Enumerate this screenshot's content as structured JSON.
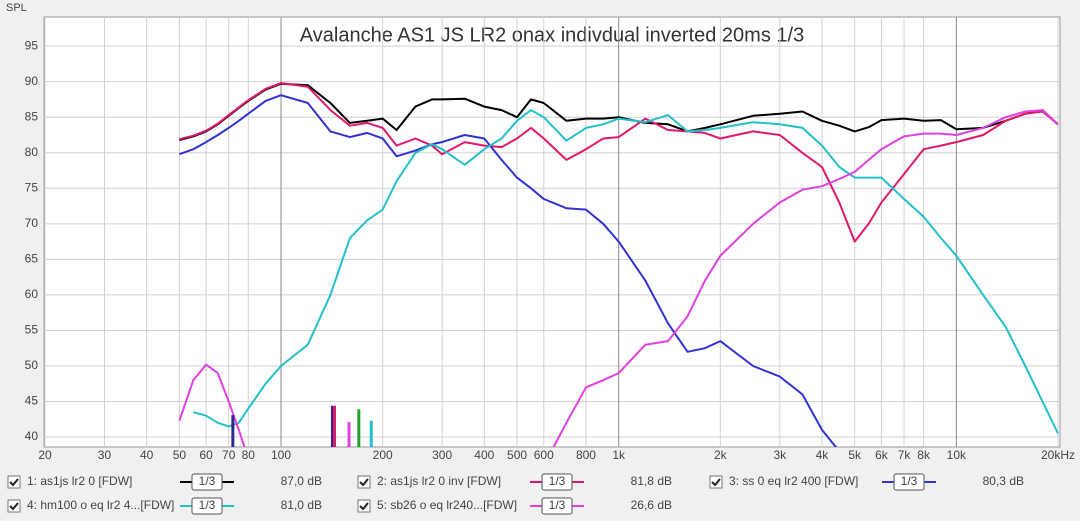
{
  "chart_data": {
    "type": "line",
    "log_x": true,
    "grid": true,
    "title": "Avalanche AS1 JS LR2 onax indivdual inverted 20ms 1/3",
    "ylabel": "SPL",
    "xlim": [
      20,
      20000
    ],
    "ylim": [
      38.6,
      99.1
    ],
    "xticks": [
      20,
      30,
      40,
      50,
      60,
      70,
      80,
      100,
      200,
      300,
      400,
      500,
      600,
      800,
      {
        "value": 1000,
        "label": "1k"
      },
      {
        "value": 2000,
        "label": "2k"
      },
      {
        "value": 3000,
        "label": "3k"
      },
      {
        "value": 4000,
        "label": "4k"
      },
      {
        "value": 5000,
        "label": "5k"
      },
      {
        "value": 6000,
        "label": "6k"
      },
      {
        "value": 7000,
        "label": "7k"
      },
      {
        "value": 8000,
        "label": "8k"
      },
      {
        "value": 10000,
        "label": "10k"
      },
      {
        "value": 20000,
        "label": "20kHz"
      }
    ],
    "yticks": [
      40,
      45,
      50,
      55,
      60,
      65,
      70,
      75,
      80,
      85,
      90,
      95
    ],
    "x": [
      50,
      55,
      60,
      65,
      70,
      75,
      80,
      90,
      100,
      120,
      140,
      160,
      180,
      200,
      220,
      250,
      280,
      300,
      350,
      400,
      450,
      500,
      550,
      600,
      700,
      800,
      900,
      1000,
      1200,
      1400,
      1600,
      1800,
      2000,
      2500,
      3000,
      3500,
      4000,
      4500,
      5000,
      5500,
      6000,
      7000,
      8000,
      9000,
      10000,
      12000,
      14000,
      16000,
      18000,
      20000
    ],
    "series": [
      {
        "name": "1: as1js lr2 0 [FDW]",
        "smoothing": "1/3",
        "readout": "87,0 dB",
        "color": "#000000",
        "values": [
          81.8,
          82.3,
          83,
          84,
          85.2,
          86.3,
          87.3,
          88.9,
          89.7,
          89.5,
          87,
          84.2,
          84.5,
          84.8,
          83.2,
          86.5,
          87.5,
          87.5,
          87.6,
          86.5,
          86,
          85,
          87.5,
          87,
          84.5,
          84.8,
          84.8,
          85,
          84.2,
          84,
          83,
          83.5,
          84,
          85.2,
          85.5,
          85.8,
          84.5,
          83.8,
          83,
          83.6,
          84.6,
          84.8,
          84.5,
          84.6,
          83.3,
          83.5,
          84.5,
          85.5,
          86,
          84
        ]
      },
      {
        "name": "2: as1js lr2 0 inv [FDW]",
        "smoothing": "1/3",
        "readout": "81,8 dB",
        "color": "#e0186c",
        "values": [
          81.9,
          82.4,
          83.1,
          84.1,
          85.3,
          86.4,
          87.4,
          89,
          89.8,
          89.3,
          86,
          83.8,
          84.2,
          83.5,
          81,
          82,
          81,
          79.8,
          81.5,
          81,
          80.8,
          82,
          83.5,
          82,
          79,
          80.5,
          82,
          82.2,
          84.8,
          83.2,
          83,
          82.8,
          82,
          83,
          82.5,
          80,
          78,
          73,
          67.5,
          70,
          73,
          77,
          80.5,
          81,
          81.5,
          82.5,
          84.5,
          85.5,
          85.8,
          84
        ]
      },
      {
        "name": "3: ss 0 eq lr2 400 [FDW]",
        "smoothing": "1/3",
        "readout": "80,3 dB",
        "color": "#3232d2",
        "values": [
          79.8,
          80.5,
          81.5,
          82.5,
          83.5,
          84.5,
          85.5,
          87.3,
          88.1,
          87,
          83,
          82.2,
          82.8,
          82,
          79.5,
          80.3,
          81.2,
          81.5,
          82.5,
          82,
          79,
          76.5,
          75,
          73.5,
          72.2,
          72,
          70,
          67.5,
          62,
          56,
          52,
          52.5,
          53.5,
          50,
          48.5,
          46,
          41,
          38,
          null,
          null,
          null,
          null,
          null,
          null,
          null,
          null,
          null,
          null,
          null,
          null
        ]
      },
      {
        "name": "4: hm100 o eq lr2 4...[FDW]",
        "smoothing": "1/3",
        "readout": "81,0 dB",
        "color": "#22c0c8",
        "values": [
          null,
          43.5,
          43,
          42,
          41.5,
          42,
          44,
          47.5,
          50,
          53,
          60,
          68,
          70.5,
          72,
          76,
          80,
          81.2,
          80.5,
          78.3,
          80.5,
          82,
          84.5,
          86,
          85,
          81.7,
          83.5,
          84,
          84.8,
          84.3,
          85.3,
          83,
          83.2,
          83.5,
          84.3,
          84,
          83.5,
          81,
          78,
          76.5,
          76.5,
          76.5,
          73.5,
          71,
          68,
          65.5,
          60,
          55.5,
          50,
          45,
          40.5
        ]
      },
      {
        "name": "5: sb26 o eq lr240...[FDW]",
        "smoothing": "1/3",
        "readout": "26,6 dB",
        "color": "#e040e0",
        "values": [
          42.3,
          48,
          50.2,
          49,
          45,
          41,
          37,
          null,
          null,
          null,
          null,
          null,
          null,
          null,
          null,
          null,
          null,
          null,
          null,
          null,
          null,
          null,
          null,
          36,
          42,
          47,
          48,
          49,
          53,
          53.5,
          57,
          62,
          65.5,
          70,
          73,
          74.8,
          75.3,
          76.3,
          77.3,
          79,
          80.5,
          82.3,
          82.7,
          82.7,
          82.5,
          83.5,
          85,
          85.8,
          86,
          84
        ]
      }
    ],
    "markers": [
      {
        "x": 72,
        "value": 43.1,
        "color": "#2a2a90"
      },
      {
        "x": 142,
        "value": 44.4,
        "color": "#2a2a90"
      },
      {
        "x": 144,
        "value": 44.4,
        "color": "#e0186c"
      },
      {
        "x": 159,
        "value": 42.1,
        "color": "#e040e0"
      },
      {
        "x": 170,
        "value": 43.9,
        "color": "#20a030"
      },
      {
        "x": 185,
        "value": 42.3,
        "color": "#22c0c8"
      }
    ]
  }
}
